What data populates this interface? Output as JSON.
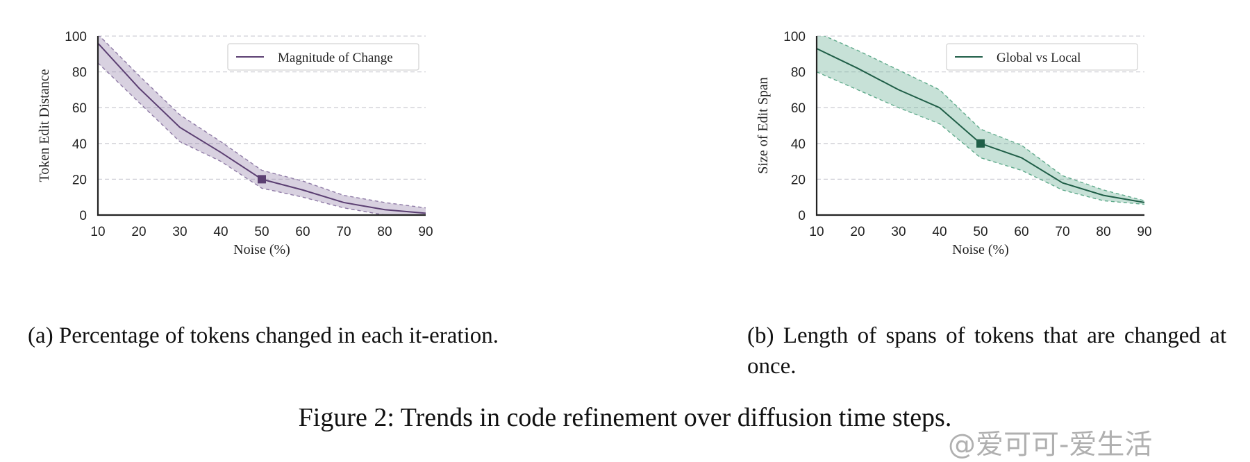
{
  "chart_data": [
    {
      "id": "a",
      "type": "line",
      "title": "",
      "xlabel": "Noise (%)",
      "ylabel": "Token Edit Distance",
      "x": [
        10,
        20,
        30,
        40,
        50,
        60,
        70,
        80,
        90
      ],
      "xticks": [
        "10",
        "20",
        "30",
        "40",
        "50",
        "60",
        "70",
        "80",
        "90"
      ],
      "yticks": [
        "0",
        "20",
        "40",
        "60",
        "80",
        "100"
      ],
      "xlim": [
        10,
        90
      ],
      "ylim": [
        0,
        100
      ],
      "grid": "horizontal dashed",
      "legend_position": "top-right",
      "series": [
        {
          "name": "Magnitude of Change",
          "values": [
            96,
            71,
            49,
            35,
            20,
            14,
            7,
            3,
            1
          ],
          "upper": [
            101,
            78,
            56,
            41,
            25,
            19,
            11,
            7,
            4
          ],
          "lower": [
            85,
            63,
            41,
            30,
            15,
            10,
            4,
            0,
            0
          ],
          "color": "#5b3f72",
          "band_color": "#8e7aa5",
          "marker_x": 50
        }
      ],
      "caption": "(a) Percentage of tokens changed in each it-eration."
    },
    {
      "id": "b",
      "type": "line",
      "title": "",
      "xlabel": "Noise (%)",
      "ylabel": "Size of Edit Span",
      "x": [
        10,
        20,
        30,
        40,
        50,
        60,
        70,
        80,
        90
      ],
      "xticks": [
        "10",
        "20",
        "30",
        "40",
        "50",
        "60",
        "70",
        "80",
        "90"
      ],
      "yticks": [
        "0",
        "20",
        "40",
        "60",
        "80",
        "100"
      ],
      "xlim": [
        10,
        90
      ],
      "ylim": [
        0,
        100
      ],
      "grid": "horizontal dashed",
      "legend_position": "top-right",
      "series": [
        {
          "name": "Global vs Local",
          "values": [
            93,
            82,
            70,
            60,
            40,
            32,
            18,
            11,
            7
          ],
          "upper": [
            102,
            92,
            81,
            70,
            48,
            39,
            22,
            14,
            8
          ],
          "lower": [
            80,
            70,
            60,
            51,
            32,
            25,
            14,
            8,
            6
          ],
          "color": "#1f5e47",
          "band_color": "#5faa8b",
          "marker_x": 50
        }
      ],
      "caption": "(b) Length of spans of tokens that are changed at once."
    }
  ],
  "figure_caption": "Figure 2: Trends in code refinement over diffusion time steps.",
  "watermark": "@爱可可-爱生活"
}
